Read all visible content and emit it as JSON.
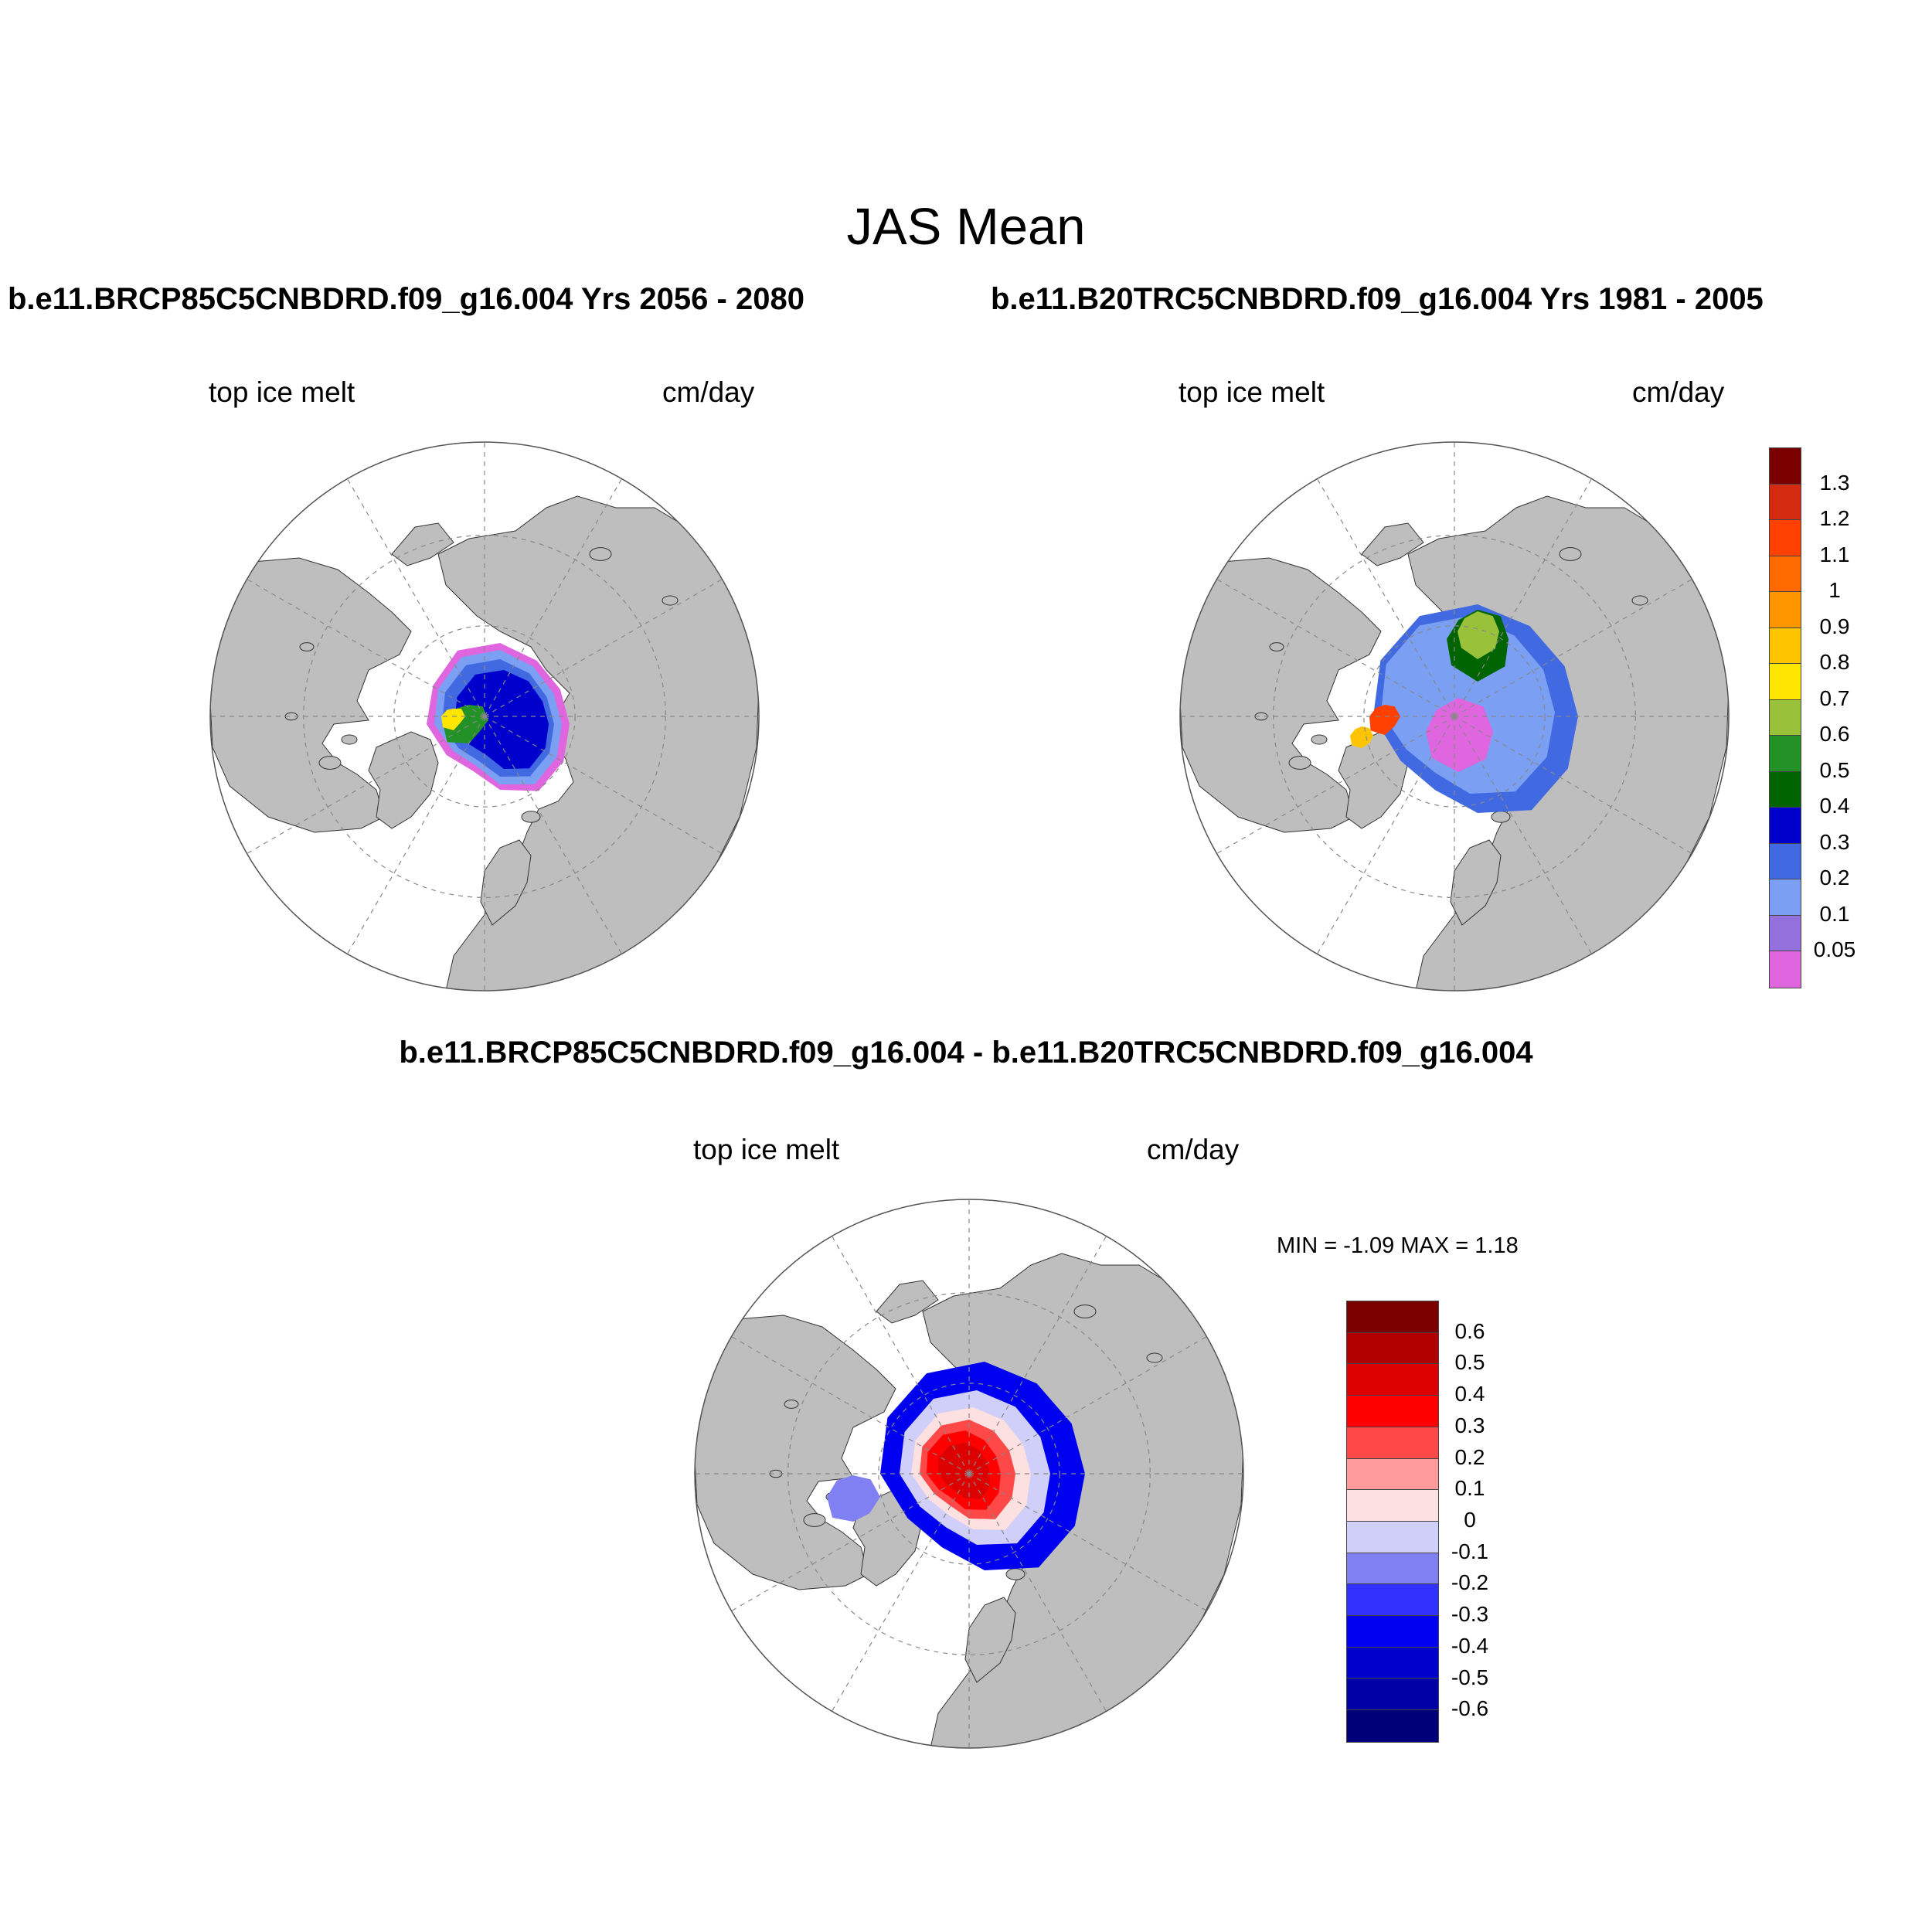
{
  "figure": {
    "title": "JAS Mean"
  },
  "panels": {
    "top_left": {
      "title": "b.e11.BRCP85C5CNBDRD.f09_g16.004  Yrs 2056 - 2080",
      "variable": "top ice melt",
      "units": "cm/day"
    },
    "top_right": {
      "title": "b.e11.B20TRC5CNBDRD.f09_g16.004  Yrs 1981 - 2005",
      "variable": "top ice melt",
      "units": "cm/day"
    },
    "bottom": {
      "title": "b.e11.BRCP85C5CNBDRD.f09_g16.004 - b.e11.B20TRC5CNBDRD.f09_g16.004",
      "variable": "top ice melt",
      "units": "cm/day",
      "min_label": "MIN =  -1.09 MAX =   1.18"
    }
  },
  "colorbar_main": {
    "labels": [
      "1.3",
      "1.2",
      "1.1",
      "1",
      "0.9",
      "0.8",
      "0.7",
      "0.6",
      "0.5",
      "0.4",
      "0.3",
      "0.2",
      "0.1",
      "0.05"
    ],
    "colors": [
      "#7a0000",
      "#d42a10",
      "#ff4000",
      "#ff6a00",
      "#ff9600",
      "#ffc400",
      "#ffe600",
      "#9ac13a",
      "#229126",
      "#006400",
      "#0000cd",
      "#4169e1",
      "#7b9ff2",
      "#9370db",
      "#e066e0"
    ]
  },
  "colorbar_diff": {
    "labels": [
      "0.6",
      "0.5",
      "0.4",
      "0.3",
      "0.2",
      "0.1",
      "0",
      "-0.1",
      "-0.2",
      "-0.3",
      "-0.4",
      "-0.5",
      "-0.6"
    ],
    "colors": [
      "#7a0000",
      "#b00000",
      "#dc0000",
      "#ff0000",
      "#ff4848",
      "#ff9b9b",
      "#fde0e0",
      "#cfcffa",
      "#8080f2",
      "#3232ff",
      "#0000f0",
      "#0000cd",
      "#0000a6",
      "#000078"
    ]
  },
  "map_colors": {
    "land": "#bebebe",
    "ocean": "#ffffff"
  }
}
